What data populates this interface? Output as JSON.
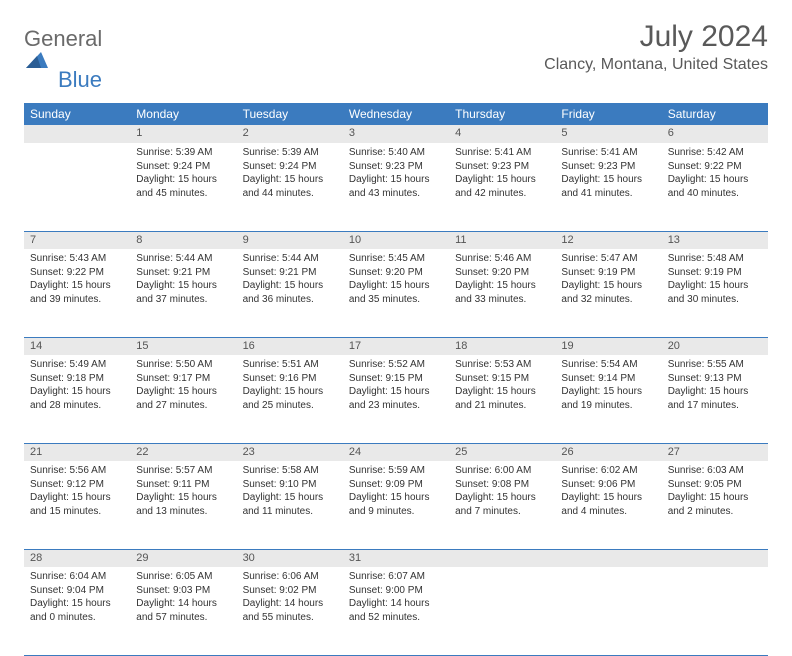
{
  "logo": {
    "text1": "General",
    "text2": "Blue"
  },
  "title": "July 2024",
  "location": "Clancy, Montana, United States",
  "colors": {
    "header_bg": "#3b7bbf",
    "header_text": "#ffffff",
    "daynum_bg": "#e9e9e9",
    "text": "#333333",
    "title_text": "#595959"
  },
  "weekdays": [
    "Sunday",
    "Monday",
    "Tuesday",
    "Wednesday",
    "Thursday",
    "Friday",
    "Saturday"
  ],
  "weeks": [
    [
      null,
      {
        "n": "1",
        "sr": "Sunrise: 5:39 AM",
        "ss": "Sunset: 9:24 PM",
        "d1": "Daylight: 15 hours",
        "d2": "and 45 minutes."
      },
      {
        "n": "2",
        "sr": "Sunrise: 5:39 AM",
        "ss": "Sunset: 9:24 PM",
        "d1": "Daylight: 15 hours",
        "d2": "and 44 minutes."
      },
      {
        "n": "3",
        "sr": "Sunrise: 5:40 AM",
        "ss": "Sunset: 9:23 PM",
        "d1": "Daylight: 15 hours",
        "d2": "and 43 minutes."
      },
      {
        "n": "4",
        "sr": "Sunrise: 5:41 AM",
        "ss": "Sunset: 9:23 PM",
        "d1": "Daylight: 15 hours",
        "d2": "and 42 minutes."
      },
      {
        "n": "5",
        "sr": "Sunrise: 5:41 AM",
        "ss": "Sunset: 9:23 PM",
        "d1": "Daylight: 15 hours",
        "d2": "and 41 minutes."
      },
      {
        "n": "6",
        "sr": "Sunrise: 5:42 AM",
        "ss": "Sunset: 9:22 PM",
        "d1": "Daylight: 15 hours",
        "d2": "and 40 minutes."
      }
    ],
    [
      {
        "n": "7",
        "sr": "Sunrise: 5:43 AM",
        "ss": "Sunset: 9:22 PM",
        "d1": "Daylight: 15 hours",
        "d2": "and 39 minutes."
      },
      {
        "n": "8",
        "sr": "Sunrise: 5:44 AM",
        "ss": "Sunset: 9:21 PM",
        "d1": "Daylight: 15 hours",
        "d2": "and 37 minutes."
      },
      {
        "n": "9",
        "sr": "Sunrise: 5:44 AM",
        "ss": "Sunset: 9:21 PM",
        "d1": "Daylight: 15 hours",
        "d2": "and 36 minutes."
      },
      {
        "n": "10",
        "sr": "Sunrise: 5:45 AM",
        "ss": "Sunset: 9:20 PM",
        "d1": "Daylight: 15 hours",
        "d2": "and 35 minutes."
      },
      {
        "n": "11",
        "sr": "Sunrise: 5:46 AM",
        "ss": "Sunset: 9:20 PM",
        "d1": "Daylight: 15 hours",
        "d2": "and 33 minutes."
      },
      {
        "n": "12",
        "sr": "Sunrise: 5:47 AM",
        "ss": "Sunset: 9:19 PM",
        "d1": "Daylight: 15 hours",
        "d2": "and 32 minutes."
      },
      {
        "n": "13",
        "sr": "Sunrise: 5:48 AM",
        "ss": "Sunset: 9:19 PM",
        "d1": "Daylight: 15 hours",
        "d2": "and 30 minutes."
      }
    ],
    [
      {
        "n": "14",
        "sr": "Sunrise: 5:49 AM",
        "ss": "Sunset: 9:18 PM",
        "d1": "Daylight: 15 hours",
        "d2": "and 28 minutes."
      },
      {
        "n": "15",
        "sr": "Sunrise: 5:50 AM",
        "ss": "Sunset: 9:17 PM",
        "d1": "Daylight: 15 hours",
        "d2": "and 27 minutes."
      },
      {
        "n": "16",
        "sr": "Sunrise: 5:51 AM",
        "ss": "Sunset: 9:16 PM",
        "d1": "Daylight: 15 hours",
        "d2": "and 25 minutes."
      },
      {
        "n": "17",
        "sr": "Sunrise: 5:52 AM",
        "ss": "Sunset: 9:15 PM",
        "d1": "Daylight: 15 hours",
        "d2": "and 23 minutes."
      },
      {
        "n": "18",
        "sr": "Sunrise: 5:53 AM",
        "ss": "Sunset: 9:15 PM",
        "d1": "Daylight: 15 hours",
        "d2": "and 21 minutes."
      },
      {
        "n": "19",
        "sr": "Sunrise: 5:54 AM",
        "ss": "Sunset: 9:14 PM",
        "d1": "Daylight: 15 hours",
        "d2": "and 19 minutes."
      },
      {
        "n": "20",
        "sr": "Sunrise: 5:55 AM",
        "ss": "Sunset: 9:13 PM",
        "d1": "Daylight: 15 hours",
        "d2": "and 17 minutes."
      }
    ],
    [
      {
        "n": "21",
        "sr": "Sunrise: 5:56 AM",
        "ss": "Sunset: 9:12 PM",
        "d1": "Daylight: 15 hours",
        "d2": "and 15 minutes."
      },
      {
        "n": "22",
        "sr": "Sunrise: 5:57 AM",
        "ss": "Sunset: 9:11 PM",
        "d1": "Daylight: 15 hours",
        "d2": "and 13 minutes."
      },
      {
        "n": "23",
        "sr": "Sunrise: 5:58 AM",
        "ss": "Sunset: 9:10 PM",
        "d1": "Daylight: 15 hours",
        "d2": "and 11 minutes."
      },
      {
        "n": "24",
        "sr": "Sunrise: 5:59 AM",
        "ss": "Sunset: 9:09 PM",
        "d1": "Daylight: 15 hours",
        "d2": "and 9 minutes."
      },
      {
        "n": "25",
        "sr": "Sunrise: 6:00 AM",
        "ss": "Sunset: 9:08 PM",
        "d1": "Daylight: 15 hours",
        "d2": "and 7 minutes."
      },
      {
        "n": "26",
        "sr": "Sunrise: 6:02 AM",
        "ss": "Sunset: 9:06 PM",
        "d1": "Daylight: 15 hours",
        "d2": "and 4 minutes."
      },
      {
        "n": "27",
        "sr": "Sunrise: 6:03 AM",
        "ss": "Sunset: 9:05 PM",
        "d1": "Daylight: 15 hours",
        "d2": "and 2 minutes."
      }
    ],
    [
      {
        "n": "28",
        "sr": "Sunrise: 6:04 AM",
        "ss": "Sunset: 9:04 PM",
        "d1": "Daylight: 15 hours",
        "d2": "and 0 minutes."
      },
      {
        "n": "29",
        "sr": "Sunrise: 6:05 AM",
        "ss": "Sunset: 9:03 PM",
        "d1": "Daylight: 14 hours",
        "d2": "and 57 minutes."
      },
      {
        "n": "30",
        "sr": "Sunrise: 6:06 AM",
        "ss": "Sunset: 9:02 PM",
        "d1": "Daylight: 14 hours",
        "d2": "and 55 minutes."
      },
      {
        "n": "31",
        "sr": "Sunrise: 6:07 AM",
        "ss": "Sunset: 9:00 PM",
        "d1": "Daylight: 14 hours",
        "d2": "and 52 minutes."
      },
      null,
      null,
      null
    ]
  ]
}
